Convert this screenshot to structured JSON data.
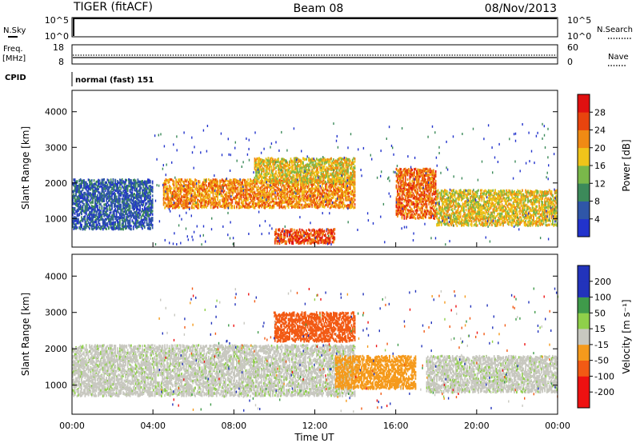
{
  "header": {
    "title": "TIGER (fitACF)",
    "beam": "Beam 08",
    "date": "08/Nov/2013"
  },
  "strips": {
    "nsky": {
      "label": "N.Sky",
      "ticks": [
        "10^5",
        "10^0"
      ],
      "right_label": "N.Search",
      "right_ticks": [
        "10^5",
        "10^0"
      ]
    },
    "freq": {
      "label_line1": "Freq.",
      "label_line2": "[MHz]",
      "ticks": [
        "18",
        "8"
      ],
      "right_label": "Nave",
      "right_ticks": [
        "60",
        "0"
      ]
    },
    "cpid": {
      "label": "CPID",
      "value": "normal (fast) 151"
    }
  },
  "colors": {
    "power_scale": [
      "#2233cc",
      "#2f56a8",
      "#3c8a5a",
      "#7ab84a",
      "#f0c41a",
      "#f08a14",
      "#e8440e",
      "#e01010"
    ],
    "velocity_scale": [
      "#ee1111",
      "#f25a14",
      "#f59a1c",
      "#c8c8c0",
      "#c8c8c0",
      "#8fd04a",
      "#3f9a4a",
      "#2233bb"
    ]
  },
  "chart_data": [
    {
      "type": "heatmap",
      "name": "power",
      "ylabel": "Slant Range [km]",
      "yticks": [
        "1000",
        "2000",
        "3000",
        "4000"
      ],
      "ylim": [
        200,
        4600
      ],
      "xlabel": "",
      "xlim_hours": [
        0,
        24
      ],
      "colorbar": {
        "label": "Power [dB]",
        "ticks": [
          "4",
          "8",
          "12",
          "16",
          "20",
          "24",
          "28"
        ],
        "range": [
          0,
          32
        ]
      },
      "features": [
        {
          "time_start": "00:00",
          "time_end": "04:00",
          "range_km_low": 700,
          "range_km_high": 2100,
          "level_db": 6
        },
        {
          "time_start": "04:30",
          "time_end": "14:00",
          "range_km_low": 1300,
          "range_km_high": 2100,
          "level_db": 22
        },
        {
          "time_start": "09:00",
          "time_end": "14:00",
          "range_km_low": 2000,
          "range_km_high": 2700,
          "level_db": 18
        },
        {
          "time_start": "10:00",
          "time_end": "13:00",
          "range_km_low": 300,
          "range_km_high": 700,
          "level_db": 26
        },
        {
          "time_start": "16:00",
          "time_end": "18:00",
          "range_km_low": 1000,
          "range_km_high": 2400,
          "level_db": 24
        },
        {
          "time_start": "18:00",
          "time_end": "24:00",
          "range_km_low": 800,
          "range_km_high": 1800,
          "level_db": 18
        }
      ]
    },
    {
      "type": "heatmap",
      "name": "velocity",
      "ylabel": "Slant Range [km]",
      "yticks": [
        "1000",
        "2000",
        "3000",
        "4000"
      ],
      "ylim": [
        200,
        4600
      ],
      "xlabel": "Time UT",
      "xticks": [
        "00:00",
        "04:00",
        "08:00",
        "12:00",
        "16:00",
        "20:00",
        "00:00"
      ],
      "xlim_hours": [
        0,
        24
      ],
      "colorbar": {
        "label": "Velocity [m s⁻¹]",
        "ticks": [
          "-200",
          "-100",
          "-50",
          "-15",
          "15",
          "50",
          "100",
          "200"
        ],
        "range": [
          -250,
          250
        ]
      },
      "features": [
        {
          "time_start": "00:00",
          "time_end": "14:00",
          "range_km_low": 700,
          "range_km_high": 2100,
          "velocity_ms": 0
        },
        {
          "time_start": "13:00",
          "time_end": "17:00",
          "range_km_low": 900,
          "range_km_high": 1800,
          "velocity_ms": -80
        },
        {
          "time_start": "10:00",
          "time_end": "14:00",
          "range_km_low": 2200,
          "range_km_high": 3000,
          "velocity_ms": -180
        },
        {
          "time_start": "17:30",
          "time_end": "24:00",
          "range_km_low": 800,
          "range_km_high": 1800,
          "velocity_ms": 0
        }
      ]
    }
  ]
}
